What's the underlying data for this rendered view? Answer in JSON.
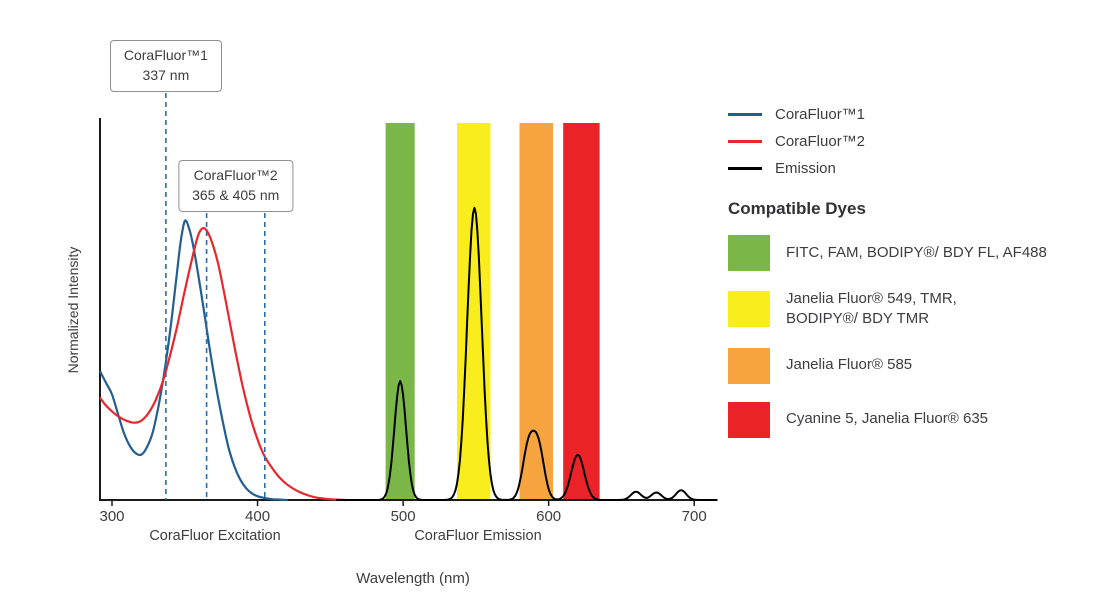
{
  "chart_data": {
    "type": "line",
    "title": "",
    "xlabel": "Wavelength (nm)",
    "ylabel": "Normalized Intensity",
    "xlim": [
      292,
      716
    ],
    "ylim": [
      0,
      1
    ],
    "x_ticks": [
      300,
      400,
      500,
      600,
      700
    ],
    "grid": false,
    "legend_position": "right",
    "x_region_labels": [
      {
        "text": "CoraFluor Excitation"
      },
      {
        "text": "CoraFluor Emission"
      }
    ],
    "marker_color": "#2e6da4",
    "marker_labels": [
      {
        "title": "CoraFluor™1",
        "value": "337 nm",
        "lines_nm": [
          337
        ]
      },
      {
        "title": "CoraFluor™2",
        "value": "365 & 405 nm",
        "lines_nm": [
          365,
          405
        ]
      }
    ],
    "filter_bands": [
      {
        "color": "#7ab648",
        "from_nm": 488,
        "to_nm": 508,
        "dyes": "FITC, FAM, BODIPY®/ BDY FL, AF488"
      },
      {
        "color": "#f9ed1e",
        "from_nm": 537,
        "to_nm": 560,
        "dyes": "Janelia Fluor® 549, TMR, BODIPY®/ BDY TMR"
      },
      {
        "color": "#f6a440",
        "from_nm": 580,
        "to_nm": 603,
        "dyes": "Janelia Fluor® 585"
      },
      {
        "color": "#ea2328",
        "from_nm": 610,
        "to_nm": 635,
        "dyes": "Cyanine 5, Janelia Fluor® 635"
      }
    ],
    "series": [
      {
        "name": "CoraFluor™1",
        "kind": "excitation",
        "color": "#235e91",
        "points": [
          [
            292,
            0.34
          ],
          [
            296,
            0.31
          ],
          [
            300,
            0.28
          ],
          [
            304,
            0.23
          ],
          [
            308,
            0.18
          ],
          [
            312,
            0.145
          ],
          [
            316,
            0.125
          ],
          [
            320,
            0.12
          ],
          [
            324,
            0.14
          ],
          [
            328,
            0.18
          ],
          [
            332,
            0.25
          ],
          [
            336,
            0.34
          ],
          [
            340,
            0.45
          ],
          [
            344,
            0.58
          ],
          [
            347,
            0.68
          ],
          [
            350,
            0.74
          ],
          [
            353,
            0.72
          ],
          [
            356,
            0.67
          ],
          [
            360,
            0.58
          ],
          [
            364,
            0.48
          ],
          [
            368,
            0.38
          ],
          [
            372,
            0.29
          ],
          [
            376,
            0.21
          ],
          [
            380,
            0.14
          ],
          [
            384,
            0.09
          ],
          [
            388,
            0.055
          ],
          [
            392,
            0.032
          ],
          [
            396,
            0.018
          ],
          [
            400,
            0.01
          ],
          [
            405,
            0.005
          ],
          [
            410,
            0.002
          ],
          [
            415,
            0.001
          ],
          [
            420,
            0
          ]
        ]
      },
      {
        "name": "CoraFluor™2",
        "kind": "excitation",
        "color": "#e8272d",
        "points": [
          [
            292,
            0.27
          ],
          [
            296,
            0.25
          ],
          [
            300,
            0.235
          ],
          [
            305,
            0.22
          ],
          [
            310,
            0.21
          ],
          [
            315,
            0.205
          ],
          [
            320,
            0.21
          ],
          [
            325,
            0.23
          ],
          [
            330,
            0.265
          ],
          [
            335,
            0.315
          ],
          [
            340,
            0.385
          ],
          [
            345,
            0.465
          ],
          [
            350,
            0.555
          ],
          [
            355,
            0.64
          ],
          [
            359,
            0.7
          ],
          [
            362,
            0.72
          ],
          [
            365,
            0.715
          ],
          [
            369,
            0.68
          ],
          [
            373,
            0.625
          ],
          [
            377,
            0.55
          ],
          [
            381,
            0.47
          ],
          [
            385,
            0.39
          ],
          [
            389,
            0.315
          ],
          [
            393,
            0.25
          ],
          [
            397,
            0.195
          ],
          [
            401,
            0.15
          ],
          [
            405,
            0.115
          ],
          [
            410,
            0.085
          ],
          [
            415,
            0.06
          ],
          [
            420,
            0.042
          ],
          [
            425,
            0.029
          ],
          [
            430,
            0.019
          ],
          [
            435,
            0.012
          ],
          [
            440,
            0.007
          ],
          [
            445,
            0.004
          ],
          [
            450,
            0.002
          ],
          [
            455,
            0.001
          ],
          [
            460,
            0
          ]
        ]
      },
      {
        "name": "Emission",
        "kind": "emission",
        "color": "#000000",
        "peaks": [
          {
            "center_nm": 498,
            "height": 0.315,
            "sigma_nm": 4
          },
          {
            "center_nm": 549,
            "height": 0.775,
            "sigma_nm": 5
          },
          {
            "center_nm": 586,
            "height": 0.135,
            "sigma_nm": 4
          },
          {
            "center_nm": 593,
            "height": 0.135,
            "sigma_nm": 4
          },
          {
            "center_nm": 620,
            "height": 0.12,
            "sigma_nm": 4.5
          },
          {
            "center_nm": 660,
            "height": 0.022,
            "sigma_nm": 3.5
          },
          {
            "center_nm": 674,
            "height": 0.02,
            "sigma_nm": 3.5
          },
          {
            "center_nm": 691,
            "height": 0.026,
            "sigma_nm": 3.5
          }
        ]
      }
    ]
  },
  "legend": {
    "lines": [
      {
        "label": "CoraFluor™1",
        "color": "#235e91"
      },
      {
        "label": "CoraFluor™2",
        "color": "#e8272d"
      },
      {
        "label": "Emission",
        "color": "#000000"
      }
    ],
    "heading": "Compatible Dyes",
    "dyes": [
      {
        "color": "#7ab648",
        "label": "FITC, FAM, BODIPY®/ BDY FL, AF488"
      },
      {
        "color": "#f9ed1e",
        "label": "Janelia Fluor® 549, TMR,\nBODIPY®/ BDY TMR"
      },
      {
        "color": "#f6a440",
        "label": "Janelia Fluor® 585"
      },
      {
        "color": "#ea2328",
        "label": "Cyanine 5, Janelia Fluor® 635"
      }
    ]
  }
}
